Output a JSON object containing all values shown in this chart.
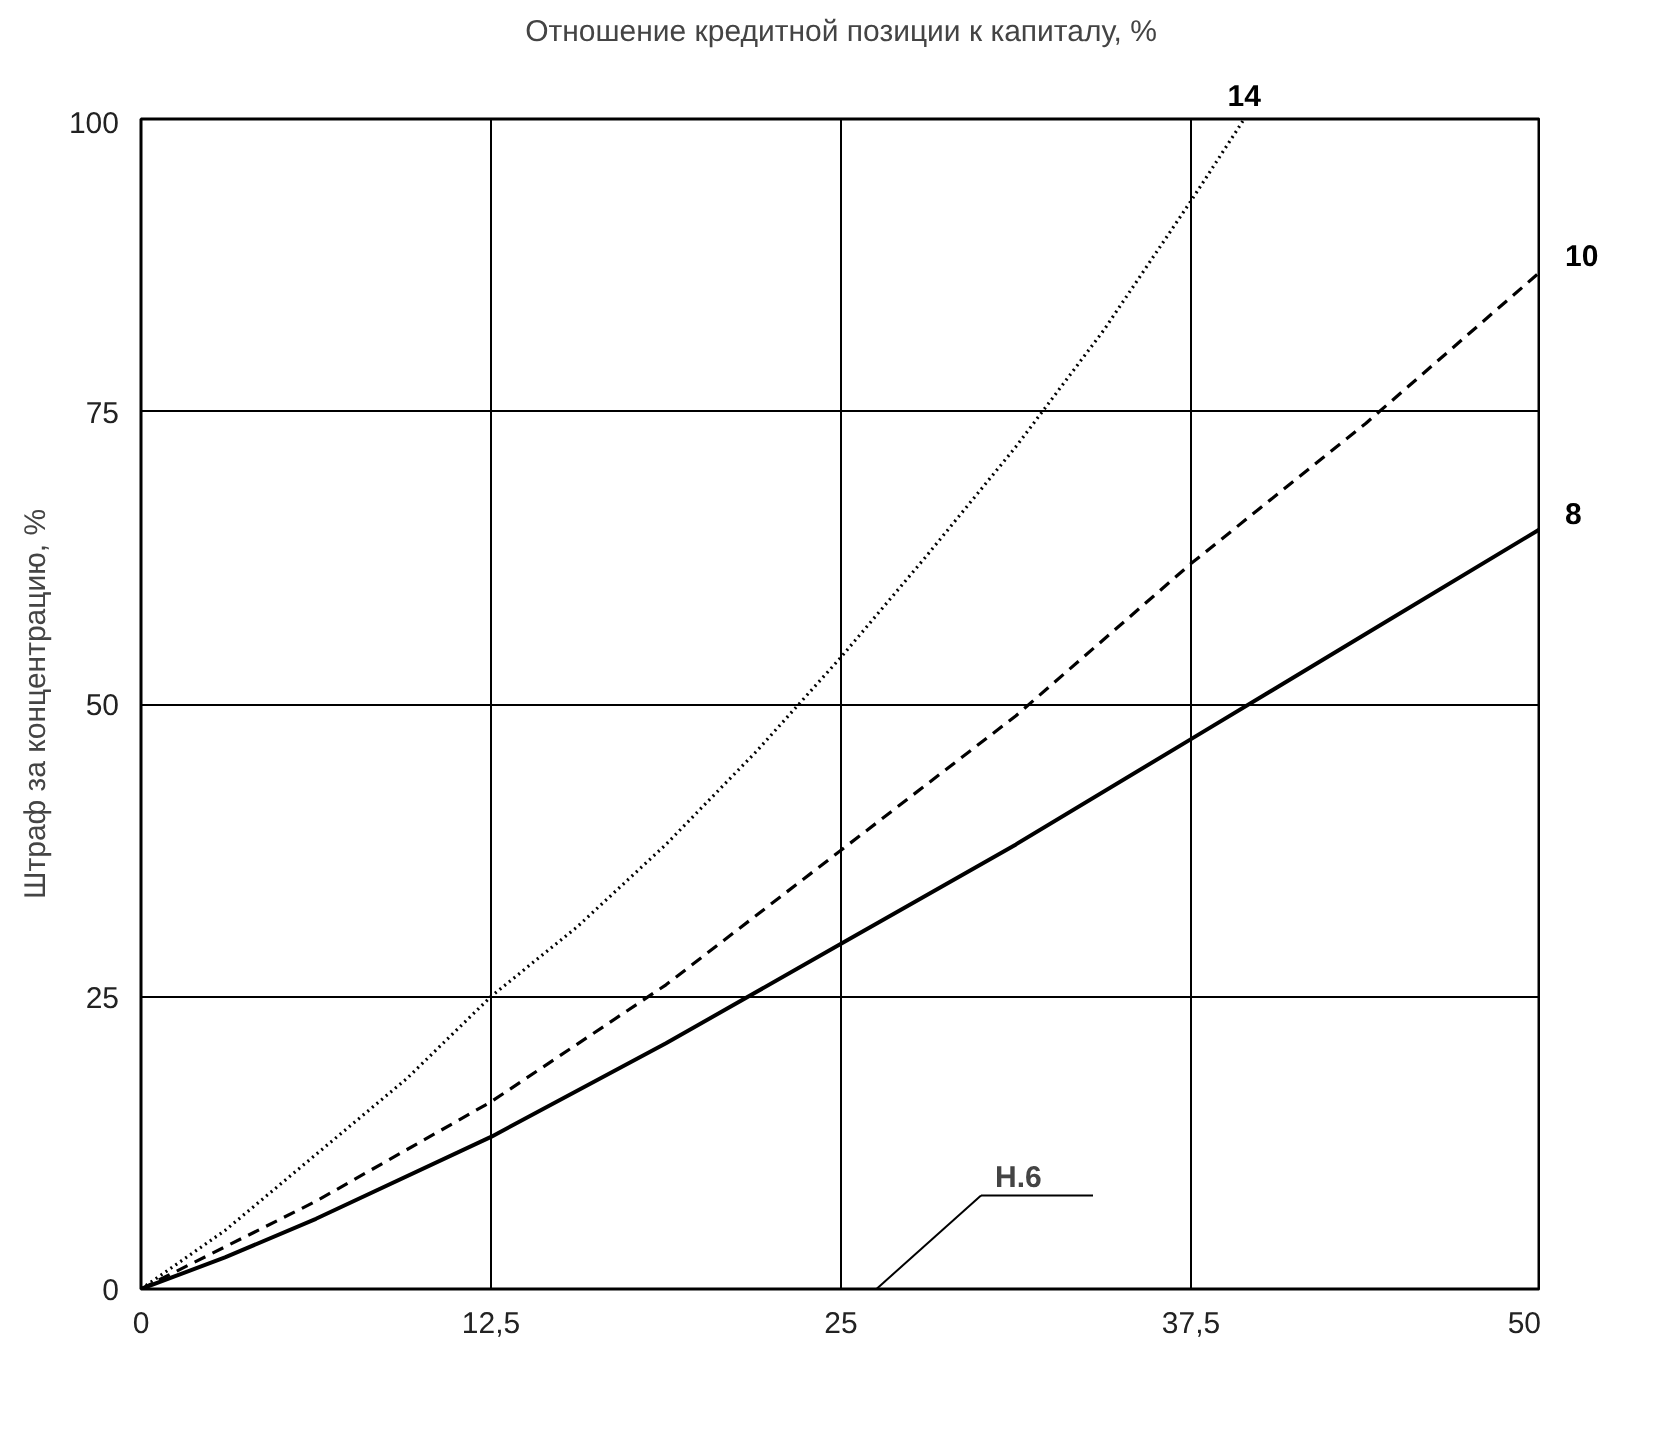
{
  "chart_data": {
    "type": "line",
    "title": "Отношение кредитной позиции к капиталу, %",
    "ylabel": "Штраф за концентрацию, %",
    "xlim": [
      0,
      50
    ],
    "ylim": [
      0,
      100
    ],
    "xticks": [
      0,
      {
        "value": 12.5,
        "label": "12,5"
      },
      25,
      {
        "value": 37.5,
        "label": "37,5"
      },
      50
    ],
    "yticks": [
      0,
      25,
      50,
      75,
      100
    ],
    "grid": true,
    "series": [
      {
        "name": "14",
        "color": "#000000",
        "line_style": "dotted",
        "x": [
          0,
          3,
          6.25,
          9.5,
          12.5,
          15.6,
          18.75,
          22,
          25,
          28,
          31.25,
          34.4,
          37.5,
          39.4
        ],
        "values": [
          0,
          5,
          11.5,
          18,
          25,
          31,
          38,
          46,
          54,
          62.5,
          72,
          82,
          93,
          100
        ]
      },
      {
        "name": "10",
        "color": "#000000",
        "line_style": "dashed",
        "x": [
          0,
          6.25,
          12.5,
          18.75,
          25,
          31.25,
          37.5,
          43.75,
          50
        ],
        "values": [
          0,
          7.5,
          16,
          26,
          37.5,
          49,
          62,
          74,
          87
        ]
      },
      {
        "name": "8",
        "color": "#000000",
        "line_style": "solid",
        "x": [
          0,
          3,
          6.25,
          12.5,
          18.75,
          25,
          31.25,
          37.5,
          43.75,
          50
        ],
        "values": [
          0,
          2.7,
          6,
          13,
          21,
          29.5,
          38,
          47,
          56,
          65
        ]
      }
    ],
    "annotations": [
      "Н.6"
    ]
  }
}
